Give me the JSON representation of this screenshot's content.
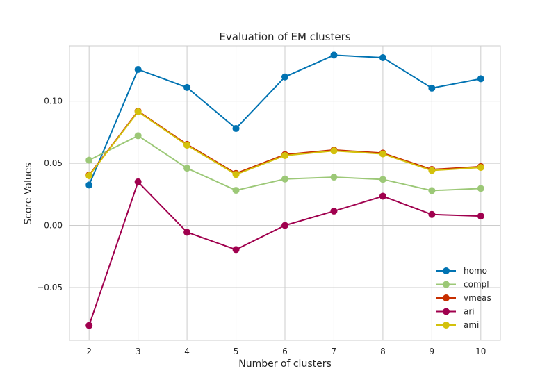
{
  "chart_data": {
    "type": "line",
    "title": "Evaluation of EM clusters",
    "xlabel": "Number of clusters",
    "ylabel": "Score Values",
    "x": [
      2,
      3,
      4,
      5,
      6,
      7,
      8,
      9,
      10
    ],
    "xlim": [
      1.6,
      10.4
    ],
    "ylim": [
      -0.0925,
      0.1445
    ],
    "xticks": [
      2,
      3,
      4,
      5,
      6,
      7,
      8,
      9,
      10
    ],
    "yticks": [
      -0.05,
      0.0,
      0.05,
      0.1
    ],
    "ytick_labels": [
      "−0.05",
      "0.00",
      "0.05",
      "0.10"
    ],
    "grid": true,
    "legend_position": "bottom-right",
    "series": [
      {
        "name": "homo",
        "color": "#0173b2",
        "values": [
          0.0325,
          0.1255,
          0.111,
          0.078,
          0.1195,
          0.137,
          0.135,
          0.1105,
          0.118
        ]
      },
      {
        "name": "compl",
        "color": "#9cc877",
        "values": [
          0.0525,
          0.0722,
          0.046,
          0.0282,
          0.0373,
          0.0388,
          0.037,
          0.028,
          0.0297
        ]
      },
      {
        "name": "vmeas",
        "color": "#c72e00",
        "values": [
          0.0405,
          0.092,
          0.0652,
          0.0418,
          0.057,
          0.0607,
          0.0582,
          0.045,
          0.0473
        ]
      },
      {
        "name": "ari",
        "color": "#a0004e",
        "values": [
          -0.0805,
          0.035,
          -0.0055,
          -0.0195,
          0.0,
          0.0115,
          0.0235,
          0.0088,
          0.0075
        ]
      },
      {
        "name": "ami",
        "color": "#d3c10c",
        "values": [
          0.04,
          0.0915,
          0.0645,
          0.041,
          0.0562,
          0.06,
          0.0575,
          0.0442,
          0.0466
        ]
      }
    ]
  }
}
